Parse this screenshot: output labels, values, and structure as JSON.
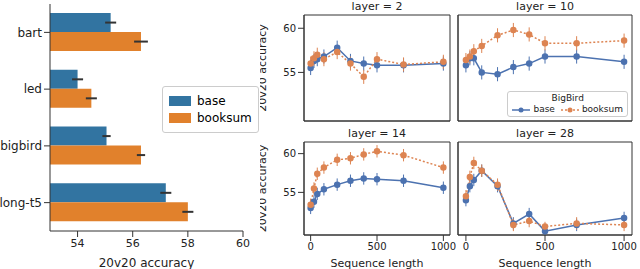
{
  "chart_data": [
    {
      "type": "bar",
      "orientation": "horizontal",
      "categories": [
        "bart",
        "led",
        "bigbird",
        "long-t5"
      ],
      "xlabel": "20v20 accuracy",
      "xlim": [
        53,
        60
      ],
      "xticks": [
        54,
        56,
        58,
        60
      ],
      "legend": "center right",
      "series": [
        {
          "name": "base",
          "color": "#3274a1",
          "values": [
            55.2,
            54.0,
            55.05,
            57.2
          ],
          "errors": [
            0.2,
            0.2,
            0.15,
            0.2
          ]
        },
        {
          "name": "booksum",
          "color": "#e1812c",
          "values": [
            56.3,
            54.5,
            56.3,
            58.0
          ],
          "errors": [
            0.25,
            0.2,
            0.15,
            0.2
          ]
        }
      ]
    },
    {
      "type": "line",
      "title": "layer = 2",
      "ylabel": "20v20 accuracy",
      "x": [
        0,
        25,
        50,
        100,
        200,
        300,
        400,
        500,
        700,
        1000
      ],
      "xlim": [
        -50,
        1050
      ],
      "xticks": [
        0,
        500,
        1000
      ],
      "ylim": [
        49.5,
        61.5
      ],
      "yticks": [
        55,
        60
      ],
      "tick_labels": "y",
      "series": [
        {
          "name": "base",
          "color": "#4c72b0",
          "marker": "circle",
          "line_style": "solid",
          "values": [
            55.5,
            56.3,
            56.5,
            56.8,
            57.8,
            56.3,
            56.0,
            55.8,
            55.8,
            56.0
          ],
          "errors": [
            0.8,
            0.8,
            0.8,
            0.8,
            0.8,
            0.8,
            0.8,
            0.8,
            0.8,
            0.8
          ]
        },
        {
          "name": "booksum",
          "color": "#dd8452",
          "marker": "circle",
          "line_style": "dotted",
          "values": [
            56.0,
            56.6,
            57.0,
            56.5,
            57.3,
            56.0,
            54.5,
            56.5,
            55.9,
            56.2
          ],
          "errors": [
            0.8,
            0.8,
            0.8,
            0.8,
            0.8,
            0.8,
            0.8,
            0.8,
            0.8,
            0.8
          ]
        }
      ]
    },
    {
      "type": "line",
      "title": "layer = 10",
      "x": [
        0,
        25,
        50,
        100,
        200,
        300,
        400,
        500,
        700,
        1000
      ],
      "xlim": [
        -50,
        1050
      ],
      "xticks": [
        0,
        500,
        1000
      ],
      "ylim": [
        49.5,
        61.5
      ],
      "yticks": [
        55,
        60
      ],
      "tick_labels": false,
      "legend": "lower right",
      "legend_title": "BigBird",
      "series": [
        {
          "name": "base",
          "color": "#4c72b0",
          "marker": "circle",
          "line_style": "solid",
          "values": [
            55.8,
            56.6,
            56.6,
            55.0,
            54.8,
            55.6,
            56.0,
            56.8,
            56.8,
            56.2
          ],
          "errors": [
            0.8,
            0.8,
            0.8,
            0.8,
            0.8,
            0.8,
            0.8,
            0.8,
            0.8,
            0.8
          ]
        },
        {
          "name": "booksum",
          "color": "#dd8452",
          "marker": "circle",
          "line_style": "dotted",
          "values": [
            56.4,
            56.8,
            57.4,
            58.0,
            59.2,
            59.8,
            59.3,
            58.3,
            58.3,
            58.6
          ],
          "errors": [
            0.8,
            0.8,
            0.8,
            0.8,
            0.8,
            0.8,
            0.8,
            0.8,
            0.8,
            0.8
          ]
        }
      ]
    },
    {
      "type": "line",
      "title": "layer = 14",
      "xlabel": "Sequence length",
      "ylabel": "20v20 accuracy",
      "x": [
        0,
        25,
        50,
        100,
        200,
        300,
        400,
        500,
        700,
        1000
      ],
      "xlim": [
        -50,
        1050
      ],
      "xticks": [
        0,
        500,
        1000
      ],
      "ylim": [
        49.5,
        61.5
      ],
      "yticks": [
        55,
        60
      ],
      "series": [
        {
          "name": "base",
          "color": "#4c72b0",
          "marker": "circle",
          "line_style": "solid",
          "values": [
            53.0,
            53.8,
            54.8,
            55.4,
            56.0,
            56.5,
            56.8,
            56.7,
            56.5,
            55.6
          ],
          "errors": [
            0.8,
            0.8,
            0.8,
            0.8,
            0.8,
            0.8,
            0.8,
            0.8,
            0.8,
            0.8
          ]
        },
        {
          "name": "booksum",
          "color": "#dd8452",
          "marker": "circle",
          "line_style": "dotted",
          "values": [
            53.4,
            55.5,
            57.4,
            58.2,
            59.2,
            59.4,
            59.9,
            60.3,
            59.8,
            58.2
          ],
          "errors": [
            0.8,
            0.8,
            0.8,
            0.8,
            0.8,
            0.8,
            0.8,
            0.8,
            0.8,
            0.8
          ]
        }
      ]
    },
    {
      "type": "line",
      "title": "layer = 28",
      "xlabel": "Sequence length",
      "x": [
        0,
        25,
        50,
        100,
        200,
        300,
        400,
        500,
        700,
        1000
      ],
      "xlim": [
        -50,
        1050
      ],
      "xticks": [
        0,
        500,
        1000
      ],
      "ylim": [
        49.5,
        61.5
      ],
      "yticks": [
        55,
        60
      ],
      "tick_labels": "x",
      "series": [
        {
          "name": "base",
          "color": "#4c72b0",
          "marker": "circle",
          "line_style": "solid",
          "values": [
            54.0,
            55.8,
            56.6,
            57.8,
            55.8,
            51.0,
            52.2,
            50.0,
            50.8,
            51.7
          ],
          "errors": [
            0.8,
            0.8,
            0.8,
            0.8,
            0.8,
            0.8,
            0.8,
            0.5,
            0.8,
            0.8
          ]
        },
        {
          "name": "booksum",
          "color": "#dd8452",
          "marker": "circle",
          "line_style": "dotted",
          "values": [
            54.5,
            57.0,
            58.8,
            57.8,
            56.0,
            50.8,
            51.3,
            50.6,
            51.0,
            50.8
          ],
          "errors": [
            0.8,
            0.8,
            0.8,
            0.8,
            0.8,
            0.8,
            0.8,
            0.6,
            0.8,
            0.8
          ]
        }
      ]
    }
  ]
}
